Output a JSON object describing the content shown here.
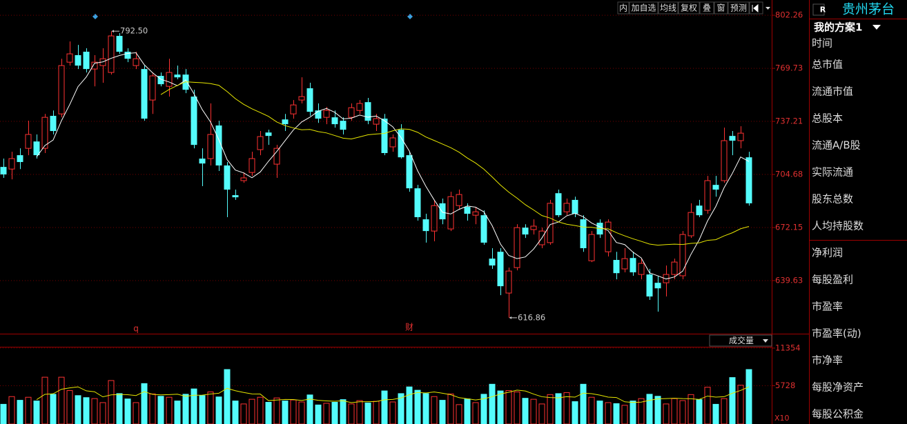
{
  "toolbar": [
    "内",
    "加自选",
    "均线",
    "复权",
    "叠",
    "窗",
    "预测"
  ],
  "event_markers": [
    "q",
    "财"
  ],
  "side_panel": {
    "badge": "R",
    "stock_name": "贵州茅台",
    "scheme": "我的方案1",
    "items": [
      "时间",
      "总市值",
      "流通市值",
      "总股本",
      "流通A/B股",
      "实际流通",
      "股东总数",
      "人均持股数",
      "净利润",
      "每股盈利",
      "市盈率",
      "市盈率(动)",
      "市净率",
      "每股净资产",
      "每股公积金"
    ]
  },
  "chart_data": [
    {
      "type": "candlestick",
      "up_color": "#ff3232",
      "down_color": "#54fcfc",
      "grid": true,
      "ylim": [
        607.1,
        811.6
      ],
      "yticks": [
        802.26,
        769.73,
        737.21,
        704.68,
        672.15,
        639.63
      ],
      "max_label": "792.50",
      "min_label": "616.86",
      "moving_averages": [
        {
          "period": 5,
          "color": "#ffffff"
        },
        {
          "period": 20,
          "color": "#e8e800"
        }
      ],
      "ohlc": [
        [
          709.3,
          714.4,
          702.6,
          704.7
        ],
        [
          708.0,
          718.6,
          701.7,
          714.4
        ],
        [
          716.5,
          720.7,
          708.0,
          712.3
        ],
        [
          720.7,
          737.6,
          716.5,
          729.2
        ],
        [
          724.9,
          729.2,
          714.4,
          716.5
        ],
        [
          720.7,
          741.8,
          717.8,
          739.7
        ],
        [
          740.6,
          743.9,
          729.2,
          731.3
        ],
        [
          741.8,
          775.6,
          739.7,
          771.4
        ],
        [
          773.5,
          786.2,
          771.4,
          778.6
        ],
        [
          777.8,
          784.1,
          769.3,
          771.4
        ],
        [
          779.9,
          782.0,
          767.2,
          769.3
        ],
        [
          769.3,
          777.8,
          758.7,
          773.5
        ],
        [
          771.4,
          782.0,
          760.9,
          775.6
        ],
        [
          767.2,
          792.5,
          765.9,
          789.6
        ],
        [
          789.6,
          791.3,
          778.6,
          779.9
        ],
        [
          779.9,
          782.0,
          773.5,
          775.6
        ],
        [
          771.4,
          779.9,
          769.3,
          775.6
        ],
        [
          769.3,
          771.4,
          737.6,
          738.9
        ],
        [
          750.3,
          767.2,
          741.8,
          765.1
        ],
        [
          765.1,
          767.2,
          758.7,
          760.0
        ],
        [
          758.7,
          775.6,
          752.4,
          767.2
        ],
        [
          765.9,
          771.4,
          763.0,
          764.2
        ],
        [
          765.9,
          769.3,
          754.5,
          756.6
        ],
        [
          752.4,
          756.6,
          720.7,
          722.8
        ],
        [
          714.4,
          720.7,
          697.5,
          711.4
        ],
        [
          714.4,
          748.2,
          710.2,
          729.2
        ],
        [
          734.7,
          737.6,
          706.8,
          710.2
        ],
        [
          710.2,
          712.3,
          678.5,
          695.4
        ],
        [
          692.0,
          695.4,
          689.1,
          690.7
        ],
        [
          700.9,
          705.9,
          699.6,
          702.6
        ],
        [
          705.9,
          718.6,
          703.8,
          714.4
        ],
        [
          719.9,
          731.3,
          716.5,
          727.9
        ],
        [
          730.4,
          732.1,
          722.8,
          728.3
        ],
        [
          711.0,
          722.8,
          702.6,
          720.7
        ],
        [
          738.4,
          741.8,
          731.3,
          735.5
        ],
        [
          741.8,
          750.3,
          738.9,
          747.3
        ],
        [
          750.3,
          764.2,
          748.2,
          752.4
        ],
        [
          757.5,
          760.9,
          740.6,
          743.1
        ],
        [
          743.9,
          748.2,
          736.3,
          738.9
        ],
        [
          739.7,
          746.1,
          735.5,
          743.9
        ],
        [
          739.7,
          743.9,
          733.4,
          735.5
        ],
        [
          737.6,
          739.7,
          729.2,
          732.1
        ],
        [
          739.7,
          748.2,
          737.6,
          745.6
        ],
        [
          743.9,
          750.3,
          741.8,
          748.2
        ],
        [
          749.0,
          751.6,
          735.5,
          737.6
        ],
        [
          735.5,
          741.8,
          731.3,
          738.9
        ],
        [
          738.9,
          741.8,
          716.5,
          717.8
        ],
        [
          721.6,
          729.2,
          718.6,
          727.1
        ],
        [
          732.1,
          735.5,
          714.4,
          715.2
        ],
        [
          716.5,
          718.6,
          694.1,
          696.2
        ],
        [
          696.2,
          698.3,
          676.4,
          678.5
        ],
        [
          677.2,
          680.6,
          662.9,
          670.0
        ],
        [
          670.0,
          689.1,
          663.7,
          685.6
        ],
        [
          687.0,
          689.9,
          674.2,
          677.2
        ],
        [
          671.3,
          694.1,
          670.0,
          691.1
        ],
        [
          685.6,
          695.4,
          683.6,
          692.4
        ],
        [
          684.8,
          687.0,
          676.4,
          680.6
        ],
        [
          679.7,
          684.8,
          674.2,
          681.8
        ],
        [
          679.7,
          682.7,
          661.6,
          662.9
        ],
        [
          653.1,
          659.5,
          646.8,
          648.9
        ],
        [
          657.3,
          659.5,
          630.7,
          636.2
        ],
        [
          632.0,
          647.6,
          616.86,
          645.5
        ],
        [
          647.6,
          674.2,
          645.9,
          672.1
        ],
        [
          672.1,
          674.2,
          665.8,
          667.9
        ],
        [
          670.9,
          677.2,
          667.9,
          673.0
        ],
        [
          661.6,
          672.1,
          659.5,
          670.0
        ],
        [
          662.9,
          689.1,
          661.6,
          687.0
        ],
        [
          693.2,
          695.4,
          678.5,
          679.7
        ],
        [
          681.8,
          689.9,
          679.7,
          687.0
        ],
        [
          689.1,
          691.1,
          678.5,
          680.6
        ],
        [
          677.2,
          679.7,
          657.3,
          659.5
        ],
        [
          651.8,
          670.0,
          651.0,
          667.9
        ],
        [
          675.1,
          677.2,
          665.8,
          667.9
        ],
        [
          657.3,
          677.2,
          654.4,
          675.5
        ],
        [
          652.3,
          657.3,
          640.4,
          644.2
        ],
        [
          646.8,
          659.5,
          644.7,
          653.1
        ],
        [
          653.5,
          657.3,
          642.6,
          644.7
        ],
        [
          643.4,
          653.1,
          640.4,
          650.2
        ],
        [
          643.4,
          646.8,
          627.8,
          629.9
        ],
        [
          638.3,
          642.6,
          620.6,
          634.9
        ],
        [
          638.3,
          648.9,
          629.9,
          643.4
        ],
        [
          643.4,
          653.1,
          640.4,
          651.0
        ],
        [
          642.6,
          670.0,
          640.4,
          667.9
        ],
        [
          667.1,
          687.0,
          665.8,
          681.4
        ],
        [
          685.6,
          689.1,
          678.5,
          679.7
        ],
        [
          682.7,
          703.8,
          680.6,
          700.9
        ],
        [
          698.3,
          703.8,
          691.1,
          695.4
        ],
        [
          700.9,
          733.4,
          699.6,
          725.4
        ],
        [
          728.3,
          731.3,
          716.5,
          725.4
        ],
        [
          725.4,
          734.2,
          720.7,
          730.0
        ],
        [
          715.2,
          718.6,
          685.6,
          687.0
        ]
      ]
    },
    {
      "type": "volume",
      "title": "成交量",
      "unit_label": "X10",
      "ylim": [
        0,
        13200
      ],
      "yticks": [
        11354,
        5728
      ],
      "moving_average": {
        "period": 5,
        "color": "#e8e800"
      },
      "values": [
        3000,
        4100,
        3600,
        4000,
        3500,
        7000,
        4500,
        7000,
        5000,
        4300,
        4000,
        3800,
        3200,
        6500,
        4600,
        3800,
        3200,
        6100,
        4500,
        4200,
        4000,
        3500,
        4500,
        5300,
        4300,
        4800,
        4100,
        8200,
        3500,
        3000,
        3700,
        4000,
        3300,
        3900,
        3500,
        3600,
        3300,
        4400,
        2900,
        3100,
        3300,
        3700,
        3000,
        3500,
        3200,
        3400,
        5000,
        3300,
        4600,
        5600,
        5100,
        4600,
        4100,
        3600,
        4500,
        2900,
        3800,
        3200,
        4500,
        6000,
        5000,
        5000,
        4800,
        3900,
        3700,
        3000,
        4400,
        4600,
        4700,
        3400,
        6000,
        4000,
        3500,
        3200,
        3100,
        2800,
        3500,
        3800,
        4500,
        4200,
        3000,
        3800,
        3500,
        4400,
        3700,
        5500,
        3000,
        3800,
        7000,
        5800,
        8200
      ]
    }
  ]
}
